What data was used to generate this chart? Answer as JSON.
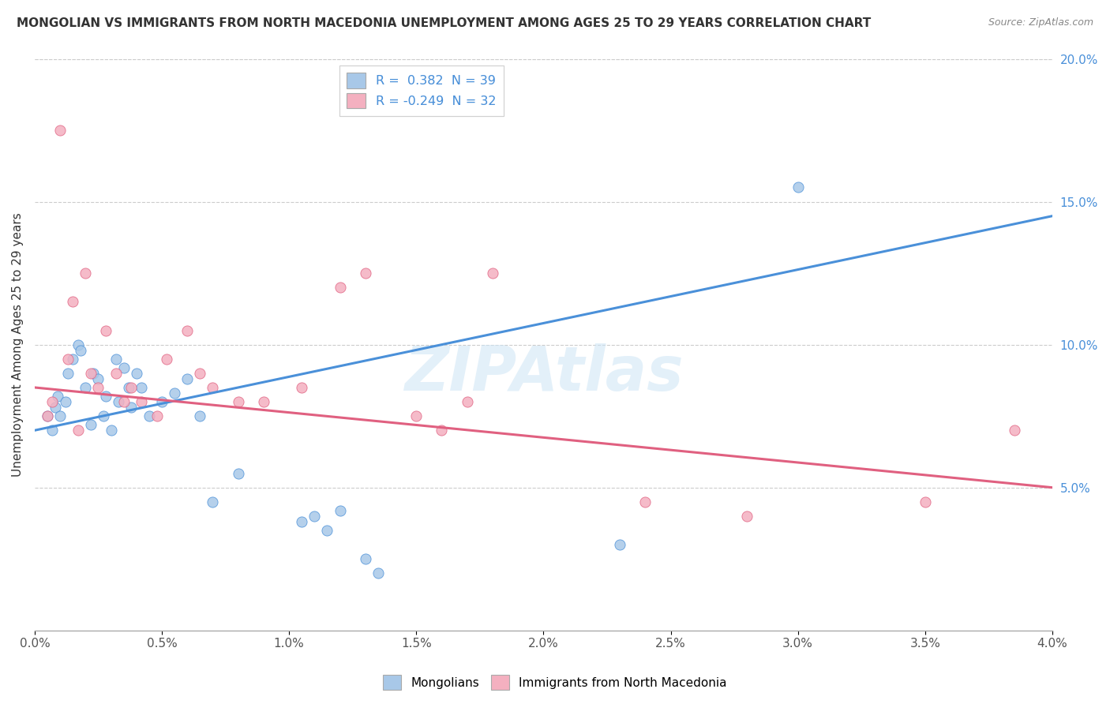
{
  "title": "MONGOLIAN VS IMMIGRANTS FROM NORTH MACEDONIA UNEMPLOYMENT AMONG AGES 25 TO 29 YEARS CORRELATION CHART",
  "source": "Source: ZipAtlas.com",
  "ylabel": "Unemployment Among Ages 25 to 29 years",
  "x_min": 0.0,
  "x_max": 4.0,
  "y_min": 0.0,
  "y_max": 20.0,
  "y_ticks_right": [
    5.0,
    10.0,
    15.0,
    20.0
  ],
  "blue_color": "#a8c8e8",
  "pink_color": "#f4b0c0",
  "blue_line_color": "#4a90d9",
  "pink_line_color": "#e06080",
  "legend_blue_label": "R =  0.382  N = 39",
  "legend_pink_label": "R = -0.249  N = 32",
  "legend_group_blue": "Mongolians",
  "legend_group_pink": "Immigrants from North Macedonia",
  "blue_line_x0": 0.0,
  "blue_line_y0": 7.0,
  "blue_line_x1": 4.0,
  "blue_line_y1": 14.5,
  "pink_line_x0": 0.0,
  "pink_line_y0": 8.5,
  "pink_line_x1": 4.0,
  "pink_line_y1": 5.0,
  "blue_scatter_x": [
    0.05,
    0.07,
    0.08,
    0.09,
    0.1,
    0.12,
    0.13,
    0.15,
    0.17,
    0.18,
    0.2,
    0.22,
    0.23,
    0.25,
    0.27,
    0.28,
    0.3,
    0.32,
    0.33,
    0.35,
    0.37,
    0.38,
    0.4,
    0.42,
    0.45,
    0.5,
    0.55,
    0.6,
    0.65,
    0.7,
    0.8,
    1.05,
    1.1,
    1.15,
    1.2,
    1.3,
    1.35,
    2.3,
    3.0
  ],
  "blue_scatter_y": [
    7.5,
    7.0,
    7.8,
    8.2,
    7.5,
    8.0,
    9.0,
    9.5,
    10.0,
    9.8,
    8.5,
    7.2,
    9.0,
    8.8,
    7.5,
    8.2,
    7.0,
    9.5,
    8.0,
    9.2,
    8.5,
    7.8,
    9.0,
    8.5,
    7.5,
    8.0,
    8.3,
    8.8,
    7.5,
    4.5,
    5.5,
    3.8,
    4.0,
    3.5,
    4.2,
    2.5,
    2.0,
    3.0,
    15.5
  ],
  "pink_scatter_x": [
    0.05,
    0.07,
    0.1,
    0.13,
    0.15,
    0.17,
    0.2,
    0.22,
    0.25,
    0.28,
    0.32,
    0.35,
    0.38,
    0.42,
    0.48,
    0.52,
    0.6,
    0.65,
    0.7,
    0.8,
    0.9,
    1.05,
    1.2,
    1.3,
    1.5,
    1.6,
    1.7,
    1.8,
    2.4,
    2.8,
    3.5,
    3.85
  ],
  "pink_scatter_y": [
    7.5,
    8.0,
    17.5,
    9.5,
    11.5,
    7.0,
    12.5,
    9.0,
    8.5,
    10.5,
    9.0,
    8.0,
    8.5,
    8.0,
    7.5,
    9.5,
    10.5,
    9.0,
    8.5,
    8.0,
    8.0,
    8.5,
    12.0,
    12.5,
    7.5,
    7.0,
    8.0,
    12.5,
    4.5,
    4.0,
    4.5,
    7.0
  ]
}
